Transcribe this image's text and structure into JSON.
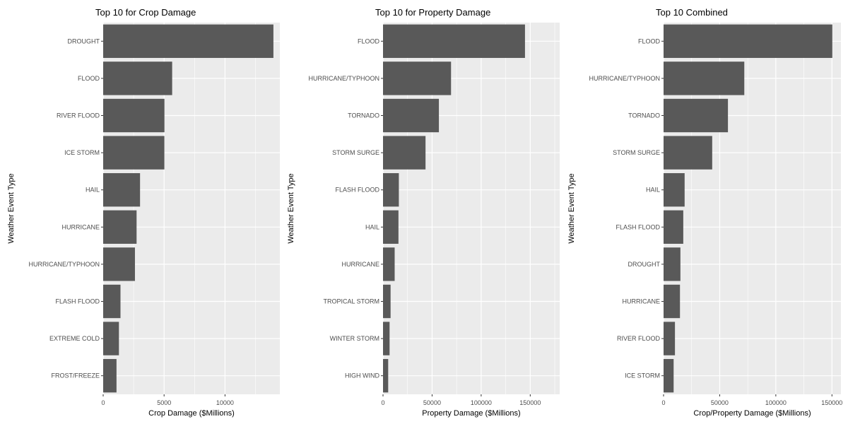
{
  "chart_data": [
    {
      "type": "bar",
      "orientation": "horizontal",
      "title": "Top 10 for Crop Damage",
      "xlabel": "Crop Damage ($Millions)",
      "ylabel": "Weather Event Type",
      "categories": [
        "DROUGHT",
        "FLOOD",
        "RIVER FLOOD",
        "ICE STORM",
        "HAIL",
        "HURRICANE",
        "HURRICANE/TYPHOON",
        "FLASH FLOOD",
        "EXTREME COLD",
        "FROST/FREEZE"
      ],
      "values": [
        13973,
        5662,
        5029,
        5022,
        3026,
        2742,
        2608,
        1421,
        1293,
        1094
      ],
      "xlim": [
        0,
        14500
      ],
      "xticks": [
        0,
        5000,
        10000
      ],
      "xtick_labels": [
        "0",
        "5000",
        "10000"
      ],
      "grid": true,
      "bar_color": "#595959",
      "panel_color": "#ebebeb"
    },
    {
      "type": "bar",
      "orientation": "horizontal",
      "title": "Top 10 for Property Damage",
      "xlabel": "Property Damage ($Millions)",
      "ylabel": "Weather Event Type",
      "categories": [
        "FLOOD",
        "HURRICANE/TYPHOON",
        "TORNADO",
        "STORM SURGE",
        "FLASH FLOOD",
        "HAIL",
        "HURRICANE",
        "TROPICAL STORM",
        "WINTER STORM",
        "HIGH WIND"
      ],
      "values": [
        144658,
        69306,
        56937,
        43324,
        16141,
        15732,
        11868,
        7704,
        6688,
        5270
      ],
      "xlim": [
        0,
        180000
      ],
      "xticks": [
        0,
        50000,
        100000,
        150000
      ],
      "xtick_labels": [
        "0",
        "50000",
        "100000",
        "150000"
      ],
      "grid": true,
      "bar_color": "#595959",
      "panel_color": "#ebebeb"
    },
    {
      "type": "bar",
      "orientation": "horizontal",
      "title": "Top 10 Combined",
      "xlabel": "Crop/Property Damage ($Millions)",
      "ylabel": "Weather Event Type",
      "categories": [
        "FLOOD",
        "HURRICANE/TYPHOON",
        "TORNADO",
        "STORM SURGE",
        "HAIL",
        "FLASH FLOOD",
        "DROUGHT",
        "HURRICANE",
        "RIVER FLOOD",
        "ICE STORM"
      ],
      "values": [
        150320,
        71914,
        57352,
        43324,
        18758,
        17562,
        15019,
        14610,
        10148,
        8967
      ],
      "xlim": [
        0,
        158000
      ],
      "xticks": [
        0,
        50000,
        100000,
        150000
      ],
      "xtick_labels": [
        "0",
        "50000",
        "100000",
        "150000"
      ],
      "grid": true,
      "bar_color": "#595959",
      "panel_color": "#ebebeb"
    }
  ]
}
